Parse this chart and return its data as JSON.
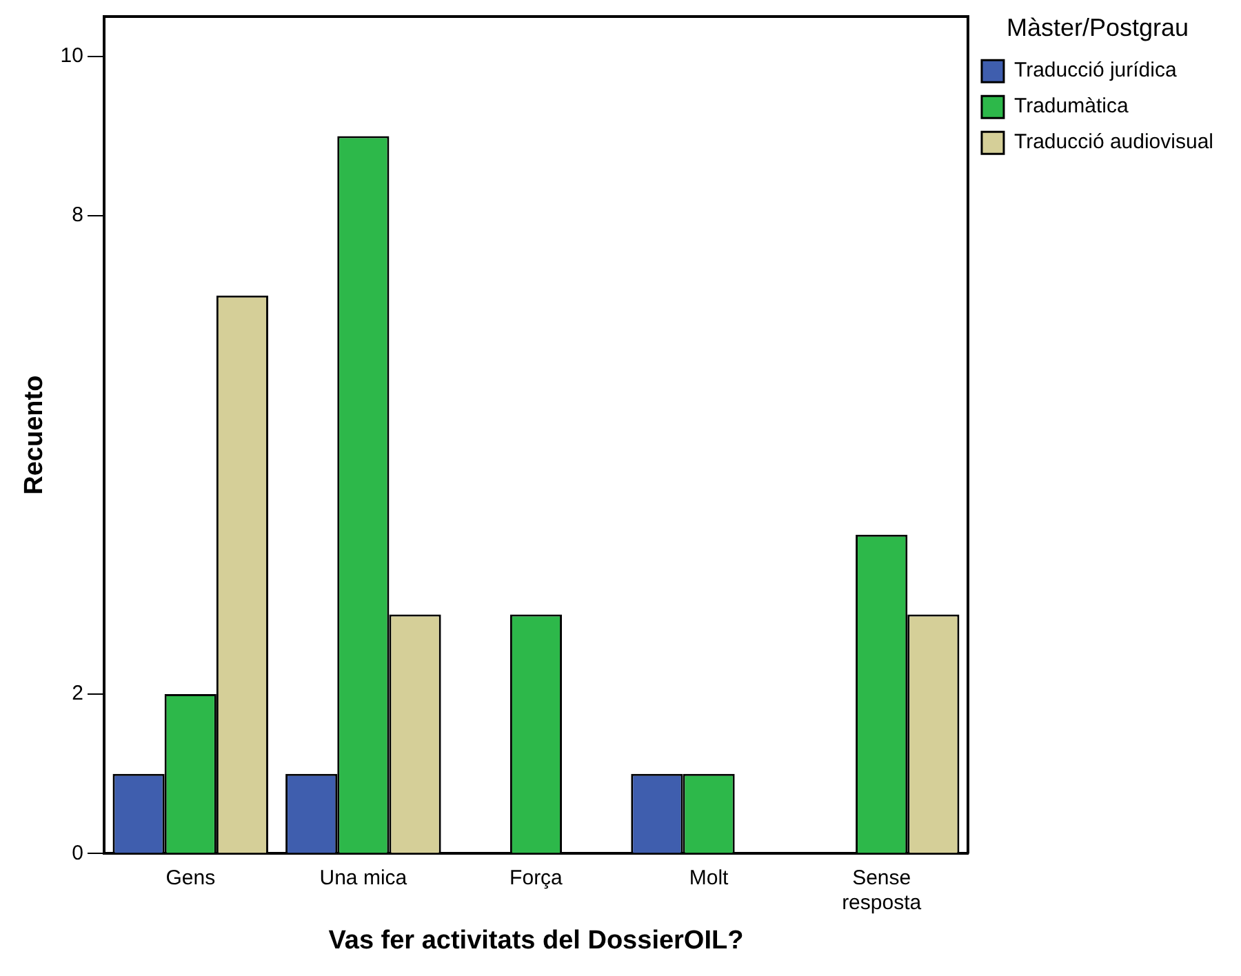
{
  "chart_data": {
    "type": "bar",
    "xlabel": "Vas fer activitats del DossierOIL?",
    "ylabel": "Recuento",
    "legend_title": "Màster/Postgrau",
    "categories": [
      "Gens",
      "Una mica",
      "Força",
      "Molt",
      "Sense resposta"
    ],
    "series": [
      {
        "name": "Traducció jurídica",
        "color": "#3f5eae",
        "values": [
          1,
          1,
          null,
          1,
          null
        ]
      },
      {
        "name": "Tradumàtica",
        "color": "#2db84a",
        "values": [
          2,
          9,
          3,
          1,
          4
        ]
      },
      {
        "name": "Traducció audiovisual",
        "color": "#d5cf98",
        "values": [
          7,
          3,
          null,
          null,
          3
        ]
      }
    ],
    "ylim": [
      0,
      10.5
    ],
    "yticks": [
      0,
      2,
      8,
      10
    ],
    "grid": false,
    "legend": "top right"
  }
}
